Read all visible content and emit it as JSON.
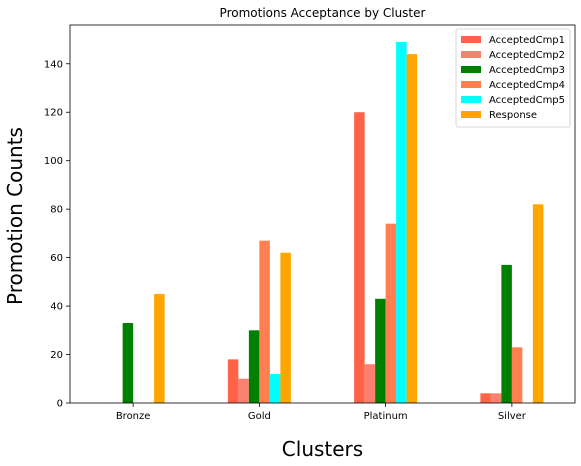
{
  "chart_data": {
    "type": "bar",
    "title": "Promotions Acceptance by Cluster",
    "xlabel": "Clusters",
    "ylabel": "Promotion Counts",
    "categories": [
      "Bronze",
      "Gold",
      "Platinum",
      "Silver"
    ],
    "series": [
      {
        "name": "AcceptedCmp1",
        "color": "#ff6347",
        "values": [
          0,
          18,
          120,
          4
        ]
      },
      {
        "name": "AcceptedCmp2",
        "color": "#fa8072",
        "values": [
          0,
          10,
          16,
          4
        ]
      },
      {
        "name": "AcceptedCmp3",
        "color": "#008000",
        "values": [
          33,
          30,
          43,
          57
        ]
      },
      {
        "name": "AcceptedCmp4",
        "color": "#ff7f50",
        "values": [
          0,
          67,
          74,
          23
        ]
      },
      {
        "name": "AcceptedCmp5",
        "color": "#00ffff",
        "values": [
          0,
          12,
          149,
          0
        ]
      },
      {
        "name": "Response",
        "color": "#ffa500",
        "values": [
          45,
          62,
          144,
          82
        ]
      }
    ],
    "ylim": [
      0,
      156
    ],
    "yticks": [
      0,
      20,
      40,
      60,
      80,
      100,
      120,
      140
    ],
    "grid": false,
    "legend_position": "top-right"
  }
}
